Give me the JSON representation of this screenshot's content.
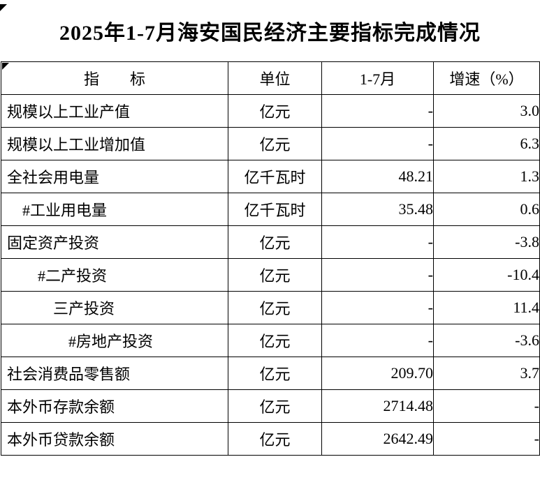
{
  "page": {
    "title": "2025年1-7月海安国民经济主要指标完成情况"
  },
  "colors": {
    "background": "#ffffff",
    "text": "#000000",
    "border": "#000000"
  },
  "table": {
    "headers": [
      "指　　标",
      "单位",
      "1-7月",
      "增速（%）"
    ],
    "rows": [
      {
        "indicator": "规模以上工业产值",
        "indent": 0,
        "unit": "亿元",
        "value": "-",
        "growth": "3.0"
      },
      {
        "indicator": "规模以上工业增加值",
        "indent": 0,
        "unit": "亿元",
        "value": "-",
        "growth": "6.3"
      },
      {
        "indicator": "全社会用电量",
        "indent": 0,
        "unit": "亿千瓦时",
        "value": "48.21",
        "growth": "1.3"
      },
      {
        "indicator": "#工业用电量",
        "indent": 1,
        "unit": "亿千瓦时",
        "value": "35.48",
        "growth": "0.6"
      },
      {
        "indicator": "固定资产投资",
        "indent": 0,
        "unit": "亿元",
        "value": "-",
        "growth": "-3.8"
      },
      {
        "indicator": "#二产投资",
        "indent": 2,
        "unit": "亿元",
        "value": "-",
        "growth": "-10.4"
      },
      {
        "indicator": "三产投资",
        "indent": 3,
        "unit": "亿元",
        "value": "-",
        "growth": "11.4"
      },
      {
        "indicator": "#房地产投资",
        "indent": 4,
        "unit": "亿元",
        "value": "-",
        "growth": "-3.6"
      },
      {
        "indicator": "社会消费品零售额",
        "indent": 0,
        "unit": "亿元",
        "value": "209.70",
        "growth": "3.7"
      },
      {
        "indicator": "本外币存款余额",
        "indent": 0,
        "unit": "亿元",
        "value": "2714.48",
        "growth": "-"
      },
      {
        "indicator": "本外币贷款余额",
        "indent": 0,
        "unit": "亿元",
        "value": "2642.49",
        "growth": "-"
      }
    ]
  }
}
